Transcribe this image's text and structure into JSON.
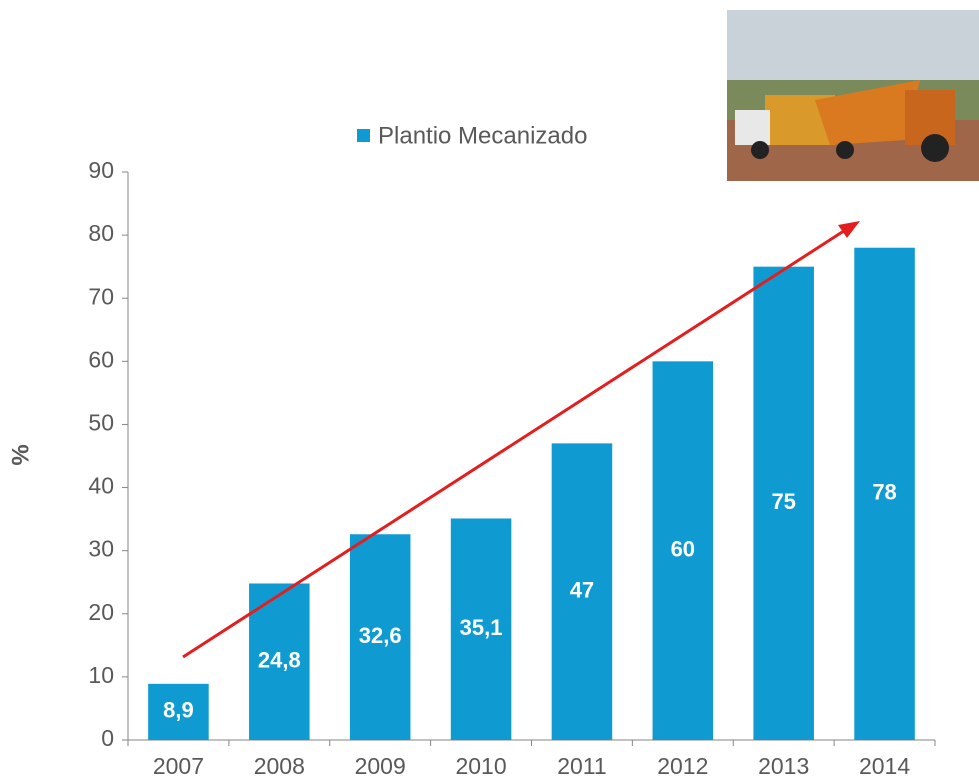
{
  "chart_data": {
    "type": "bar",
    "legend_label": "Plantio Mecanizado",
    "y_label": "%",
    "categories": [
      "2007",
      "2008",
      "2009",
      "2010",
      "2011",
      "2012",
      "2013",
      "2014"
    ],
    "values": [
      8.9,
      24.8,
      32.6,
      35.1,
      47,
      60,
      75,
      78
    ],
    "value_labels": [
      "8,9",
      "24,8",
      "32,6",
      "35,1",
      "47",
      "60",
      "75",
      "78"
    ],
    "color": "#0f9bd2",
    "ylim": [
      0,
      90
    ],
    "yticks": [
      0,
      10,
      20,
      30,
      40,
      50,
      60,
      70,
      80,
      90
    ],
    "grid": false
  }
}
